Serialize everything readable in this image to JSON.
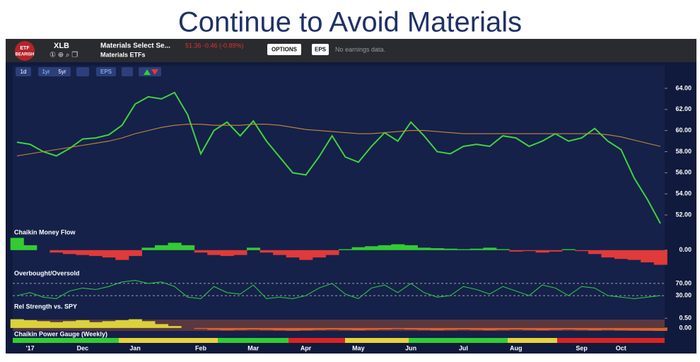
{
  "slide_title": "Continue to Avoid Materials",
  "header": {
    "badge_top": "ETF",
    "badge_bottom": "BEARISH",
    "symbol": "XLB",
    "name": "Materials Select Se...",
    "group": "Materials ETFs",
    "quote": "51.36 -0.46 (-0.89%)",
    "options": "OPTIONS",
    "eps": "EPS",
    "earnings": "No earnings data."
  },
  "toolbar": {
    "interval": "1d",
    "range_1": "1yr",
    "range_2": "5yr",
    "eps": "EPS"
  },
  "chart_data": [
    {
      "type": "line",
      "categories": [
        null,
        "'17",
        null,
        null,
        null,
        "Dec",
        null,
        null,
        null,
        "Jan",
        null,
        null,
        null,
        null,
        "Feb",
        null,
        null,
        null,
        "Mar",
        null,
        null,
        null,
        "Apr",
        null,
        null,
        null,
        "May",
        null,
        null,
        null,
        "Jun",
        null,
        null,
        null,
        "Jul",
        null,
        null,
        null,
        "Aug",
        null,
        null,
        null,
        null,
        "Sep",
        null,
        null,
        "Oct",
        null,
        null,
        null
      ],
      "series": [
        {
          "color": "#3fd43f",
          "values": [
            58.9,
            58.7,
            58.0,
            57.6,
            58.3,
            59.2,
            59.3,
            59.6,
            60.5,
            62.5,
            63.2,
            63.0,
            63.6,
            61.5,
            57.8,
            60.0,
            60.8,
            59.5,
            60.9,
            59.0,
            57.5,
            56.0,
            55.8,
            57.5,
            59.5,
            57.5,
            57.0,
            58.5,
            59.8,
            59.0,
            60.8,
            59.5,
            58.0,
            57.8,
            58.5,
            58.7,
            58.5,
            59.5,
            59.3,
            58.5,
            59.0,
            59.7,
            59.0,
            59.3,
            60.2,
            59.0,
            58.2,
            55.5,
            53.5,
            51.2
          ]
        },
        {
          "color": "#c8883a",
          "values": [
            57.6,
            57.8,
            58.0,
            58.2,
            58.4,
            58.6,
            58.8,
            59.0,
            59.3,
            59.7,
            60.0,
            60.3,
            60.5,
            60.6,
            60.6,
            60.5,
            60.5,
            60.5,
            60.6,
            60.6,
            60.5,
            60.3,
            60.1,
            60.0,
            59.9,
            59.8,
            59.7,
            59.7,
            59.8,
            59.9,
            60.0,
            60.0,
            59.9,
            59.8,
            59.7,
            59.7,
            59.7,
            59.7,
            59.7,
            59.7,
            59.7,
            59.7,
            59.7,
            59.7,
            59.7,
            59.6,
            59.4,
            59.1,
            58.8,
            58.5
          ]
        }
      ],
      "ylim": [
        50.8,
        65.0
      ],
      "yticks": [
        {
          "value": 64,
          "label": "64.00"
        },
        {
          "value": 62,
          "label": "62.00"
        },
        {
          "value": 60,
          "label": "60.00"
        },
        {
          "value": 58,
          "label": "58.00"
        },
        {
          "value": 56,
          "label": "56.00"
        },
        {
          "value": 54,
          "label": "54.00"
        },
        {
          "value": 52,
          "label": "52.00"
        }
      ]
    },
    {
      "type": "bar",
      "title": "Chaikin Money Flow",
      "values": [
        0.25,
        0.1,
        0,
        -0.05,
        -0.08,
        -0.1,
        -0.12,
        -0.15,
        -0.2,
        -0.12,
        0.05,
        0.1,
        0.15,
        0.1,
        -0.05,
        -0.1,
        -0.12,
        -0.1,
        0.05,
        -0.05,
        -0.1,
        -0.15,
        -0.2,
        -0.15,
        -0.1,
        0.02,
        0.06,
        0.08,
        0.1,
        0.12,
        0.1,
        0.05,
        0.04,
        0.03,
        0.02,
        0.03,
        0.05,
        0.02,
        -0.03,
        -0.02,
        -0.05,
        -0.03,
        0.02,
        -0.02,
        -0.08,
        -0.15,
        -0.18,
        -0.2,
        -0.25,
        -0.3
      ],
      "colors": [
        "#33cc33",
        "#e03a3a"
      ],
      "ylim": [
        -0.35,
        0.3
      ],
      "yticks": [
        {
          "value": 0,
          "label": "0.00"
        }
      ]
    },
    {
      "type": "line",
      "title": "Overbought/Oversold",
      "series": [
        {
          "color": "#2fbf4a",
          "values": [
            30,
            40,
            25,
            20,
            45,
            55,
            50,
            60,
            75,
            80,
            70,
            75,
            60,
            25,
            20,
            60,
            40,
            35,
            65,
            20,
            25,
            20,
            30,
            55,
            70,
            35,
            20,
            55,
            65,
            40,
            70,
            40,
            25,
            30,
            60,
            50,
            35,
            60,
            45,
            30,
            65,
            55,
            30,
            60,
            55,
            30,
            25,
            20,
            25,
            30
          ]
        }
      ],
      "ylim": [
        0,
        100
      ],
      "yticks": [
        {
          "value": 70,
          "label": "70.00"
        },
        {
          "value": 30,
          "label": "30.00"
        }
      ]
    },
    {
      "type": "bar",
      "title": "Rel Strength vs. SPY",
      "values": [
        0.45,
        0.4,
        0.35,
        0.3,
        0.35,
        0.4,
        0.3,
        0.35,
        0.4,
        0.45,
        0.35,
        0.2,
        0.1,
        0.0,
        -0.05,
        -0.1,
        -0.12,
        -0.1,
        -0.08,
        -0.1,
        -0.12,
        -0.14,
        -0.12,
        -0.1,
        -0.08,
        -0.1,
        -0.12,
        -0.1,
        -0.08,
        -0.06,
        -0.08,
        -0.1,
        -0.12,
        -0.1,
        -0.08,
        -0.1,
        -0.12,
        -0.1,
        -0.08,
        -0.1,
        -0.12,
        -0.1,
        -0.08,
        -0.1,
        -0.12,
        -0.1,
        -0.12,
        -0.13,
        -0.14,
        -0.15
      ],
      "colors": [
        "#d9d23a",
        "#e0602a"
      ],
      "ylim": [
        -0.15,
        0.65
      ],
      "yticks": [
        {
          "value": 0.5,
          "label": "0.50"
        },
        {
          "value": 0,
          "label": "0.00"
        }
      ]
    },
    {
      "type": "strip",
      "title": "Chaikin Power Gauge (Weekly)"
    }
  ]
}
